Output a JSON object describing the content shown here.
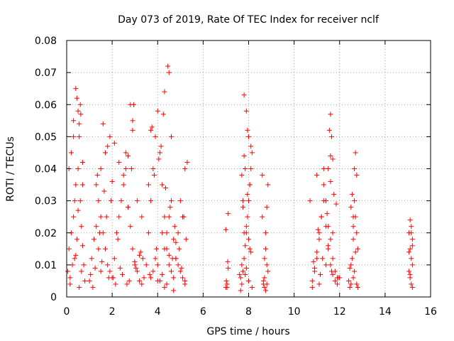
{
  "chart_data": {
    "type": "scatter",
    "title": "Day 073 of 2019, Rate Of TEC Index for receiver nclf",
    "xlabel": "GPS time / hours",
    "ylabel": "ROTI / TECUs",
    "xlim": [
      0,
      16
    ],
    "ylim": [
      0,
      0.08
    ],
    "x_ticks": [
      0,
      2,
      4,
      6,
      8,
      10,
      12,
      14,
      16
    ],
    "x_tick_labels": [
      "0",
      "2",
      "4",
      "6",
      "8",
      "10",
      "12",
      "14",
      "16"
    ],
    "y_ticks": [
      0,
      0.01,
      0.02,
      0.03,
      0.04,
      0.05,
      0.06,
      0.07,
      0.08
    ],
    "y_tick_labels": [
      "0",
      "0.01",
      "0.02",
      "0.03",
      "0.04",
      "0.05",
      "0.06",
      "0.07",
      "0.08"
    ],
    "grid": "dotted",
    "marker": "+",
    "series": [
      {
        "name": "ROTI",
        "color": "#ff0000",
        "x": [
          0.05,
          0.1,
          0.15,
          0.2,
          0.3,
          0.35,
          0.4,
          0.45,
          0.5,
          0.55,
          0.6,
          0.65,
          0.7,
          0.75,
          0.8,
          0.1,
          0.2,
          0.3,
          0.4,
          0.5,
          0.6,
          0.7,
          0.3,
          0.45,
          0.55,
          0.62,
          0.35,
          0.5,
          0.7,
          0.25,
          0.4,
          0.65,
          0.15,
          0.55,
          1.0,
          1.1,
          1.2,
          1.3,
          1.4,
          1.5,
          1.6,
          1.7,
          1.8,
          1.9,
          2.0,
          2.1,
          2.2,
          2.3,
          2.4,
          2.5,
          2.6,
          2.7,
          2.8,
          2.9,
          3.0,
          3.1,
          3.2,
          3.3,
          3.4,
          1.3,
          1.5,
          1.7,
          1.9,
          2.1,
          2.3,
          2.5,
          2.7,
          2.9,
          3.1,
          3.3,
          1.4,
          1.6,
          1.8,
          2.0,
          2.6,
          2.8,
          2.95,
          1.45,
          1.75,
          1.95,
          2.7,
          2.85,
          2.9,
          1.35,
          1.65,
          2.25,
          3.2,
          1.05,
          1.25,
          1.55,
          1.85,
          2.15,
          2.45,
          2.75,
          3.05,
          3.35,
          1.15,
          1.5,
          2.05,
          2.35,
          2.65,
          2.99,
          3.25,
          3.5,
          3.6,
          3.7,
          3.8,
          3.9,
          4.0,
          4.1,
          4.2,
          4.3,
          4.4,
          4.5,
          4.6,
          4.7,
          4.8,
          4.9,
          5.0,
          5.1,
          5.2,
          5.3,
          3.6,
          3.7,
          3.8,
          3.9,
          4.0,
          4.1,
          4.2,
          4.3,
          4.4,
          4.5,
          4.6,
          4.7,
          4.8,
          4.9,
          5.0,
          5.1,
          5.2,
          4.4,
          4.45,
          4.5,
          4.3,
          4.25,
          3.7,
          3.75,
          4.05,
          4.6,
          4.15,
          3.85,
          4.35,
          4.55,
          4.75,
          5.15,
          5.25,
          4.95,
          4.65,
          3.95,
          4.2,
          4.5,
          4.8,
          5.05,
          3.65,
          4.0,
          4.3,
          4.7,
          5.2,
          7.0,
          7.05,
          7.1,
          7.0,
          7.08,
          7.02,
          7.05,
          7.1,
          7.6,
          7.65,
          7.7,
          7.75,
          7.8,
          7.85,
          7.9,
          7.95,
          8.0,
          8.05,
          8.1,
          8.15,
          7.7,
          7.75,
          7.8,
          7.9,
          8.0,
          8.1,
          7.8,
          7.85,
          7.95,
          8.05,
          7.75,
          7.9,
          8.0,
          8.1,
          7.7,
          7.85,
          8.0,
          8.15,
          7.65,
          7.9,
          8.05,
          7.8,
          7.95,
          8.6,
          8.65,
          8.7,
          8.75,
          8.8,
          8.85,
          8.7,
          8.75,
          8.8,
          8.85,
          8.6,
          8.7,
          8.8,
          8.65,
          8.75,
          10.7,
          10.8,
          10.9,
          11.0,
          11.1,
          11.2,
          11.3,
          11.4,
          11.5,
          11.6,
          11.7,
          11.8,
          11.9,
          12.0,
          10.8,
          10.9,
          11.0,
          11.1,
          11.2,
          11.3,
          11.4,
          11.5,
          11.6,
          11.7,
          11.8,
          11.9,
          11.1,
          11.55,
          11.6,
          11.65,
          11.6,
          11.7,
          11.5,
          11.6,
          11.0,
          11.3,
          11.45,
          11.75,
          11.85,
          11.05,
          11.25,
          11.5,
          11.7,
          10.85,
          11.15,
          11.4,
          11.65,
          11.95,
          12.4,
          12.45,
          12.5,
          12.55,
          12.6,
          12.65,
          12.7,
          12.75,
          12.8,
          12.5,
          12.6,
          12.7,
          12.75,
          12.55,
          12.65,
          12.6,
          12.7,
          12.45,
          12.75,
          12.5,
          12.65,
          12.8,
          12.6,
          15.05,
          15.1,
          15.15,
          15.2,
          15.1,
          15.15,
          15.2,
          15.05,
          15.1,
          15.15,
          15.2,
          15.05,
          15.15,
          15.1,
          15.2
        ],
        "y": [
          0.008,
          0.015,
          0.006,
          0.02,
          0.025,
          0.012,
          0.035,
          0.018,
          0.04,
          0.05,
          0.03,
          0.022,
          0.016,
          0.01,
          0.005,
          0.04,
          0.045,
          0.055,
          0.065,
          0.058,
          0.06,
          0.042,
          0.05,
          0.062,
          0.054,
          0.057,
          0.03,
          0.027,
          0.035,
          0.01,
          0.013,
          0.008,
          0.004,
          0.003,
          0.005,
          0.012,
          0.018,
          0.022,
          0.03,
          0.025,
          0.02,
          0.015,
          0.01,
          0.008,
          0.006,
          0.012,
          0.02,
          0.025,
          0.03,
          0.035,
          0.04,
          0.028,
          0.022,
          0.015,
          0.01,
          0.008,
          0.005,
          0.004,
          0.006,
          0.035,
          0.04,
          0.045,
          0.05,
          0.048,
          0.042,
          0.038,
          0.044,
          0.055,
          0.03,
          0.025,
          0.015,
          0.054,
          0.047,
          0.036,
          0.045,
          0.06,
          0.06,
          0.02,
          0.025,
          0.03,
          0.028,
          0.04,
          0.052,
          0.038,
          0.033,
          0.018,
          0.013,
          0.007,
          0.009,
          0.011,
          0.006,
          0.004,
          0.007,
          0.005,
          0.009,
          0.012,
          0.003,
          0.008,
          0.006,
          0.009,
          0.004,
          0.011,
          0.014,
          0.01,
          0.02,
          0.03,
          0.04,
          0.05,
          0.058,
          0.045,
          0.035,
          0.025,
          0.015,
          0.01,
          0.008,
          0.006,
          0.012,
          0.02,
          0.03,
          0.025,
          0.04,
          0.042,
          0.035,
          0.006,
          0.008,
          0.012,
          0.01,
          0.005,
          0.007,
          0.015,
          0.02,
          0.025,
          0.03,
          0.018,
          0.012,
          0.01,
          0.008,
          0.006,
          0.005,
          0.004,
          0.072,
          0.07,
          0.064,
          0.057,
          0.052,
          0.053,
          0.043,
          0.05,
          0.047,
          0.038,
          0.034,
          0.028,
          0.022,
          0.025,
          0.018,
          0.015,
          0.012,
          0.015,
          0.02,
          0.013,
          0.017,
          0.009,
          0.007,
          0.005,
          0.003,
          0.002,
          0.004,
          0.003,
          0.004,
          0.026,
          0.021,
          0.011,
          0.005,
          0.003,
          0.009,
          0.007,
          0.002,
          0.004,
          0.008,
          0.012,
          0.016,
          0.02,
          0.025,
          0.03,
          0.035,
          0.04,
          0.045,
          0.038,
          0.03,
          0.063,
          0.058,
          0.05,
          0.047,
          0.044,
          0.04,
          0.052,
          0.035,
          0.028,
          0.022,
          0.018,
          0.014,
          0.01,
          0.007,
          0.005,
          0.003,
          0.006,
          0.009,
          0.015,
          0.02,
          0.032,
          0.025,
          0.005,
          0.003,
          0.002,
          0.004,
          0.008,
          0.012,
          0.02,
          0.028,
          0.035,
          0.038,
          0.006,
          0.01,
          0.004,
          0.015,
          0.03,
          0.005,
          0.008,
          0.012,
          0.018,
          0.025,
          0.03,
          0.022,
          0.015,
          0.01,
          0.007,
          0.005,
          0.004,
          0.006,
          0.003,
          0.009,
          0.014,
          0.02,
          0.025,
          0.035,
          0.03,
          0.022,
          0.018,
          0.012,
          0.008,
          0.006,
          0.004,
          0.052,
          0.057,
          0.05,
          0.044,
          0.043,
          0.04,
          0.036,
          0.038,
          0.04,
          0.026,
          0.032,
          0.029,
          0.021,
          0.012,
          0.016,
          0.02,
          0.011,
          0.007,
          0.01,
          0.008,
          0.006,
          0.005,
          0.003,
          0.004,
          0.012,
          0.018,
          0.03,
          0.025,
          0.02,
          0.015,
          0.01,
          0.006,
          0.045,
          0.038,
          0.032,
          0.04,
          0.022,
          0.014,
          0.009,
          0.004,
          0.028,
          0.008,
          0.003,
          0.025,
          0.02,
          0.024,
          0.022,
          0.018,
          0.015,
          0.012,
          0.01,
          0.008,
          0.006,
          0.004,
          0.003,
          0.014,
          0.02,
          0.007,
          0.016
        ]
      }
    ]
  }
}
